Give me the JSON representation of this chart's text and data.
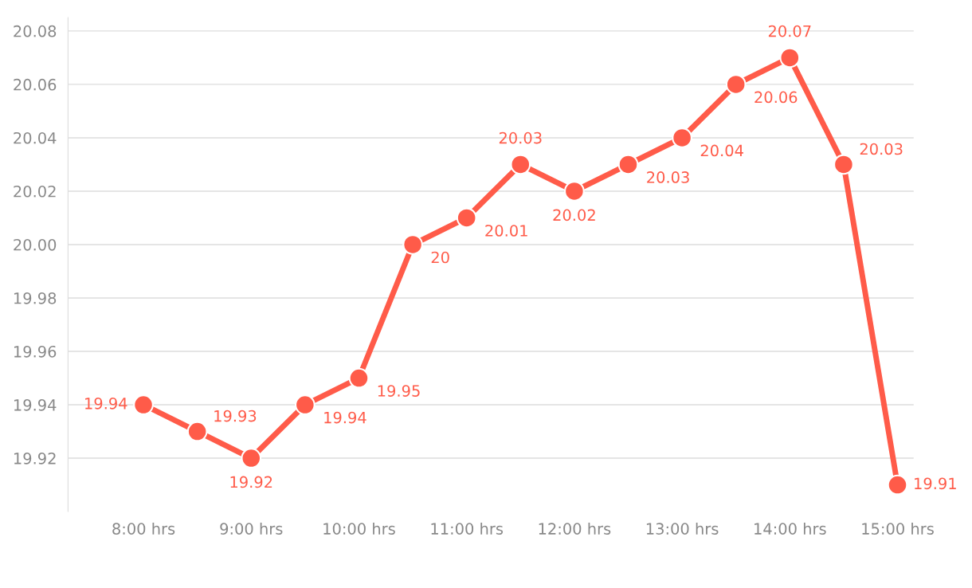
{
  "chart_data": {
    "type": "line",
    "categories": [
      "8:00 hrs",
      null,
      "9:00 hrs",
      null,
      "10:00 hrs",
      null,
      "11:00 hrs",
      null,
      "12:00 hrs",
      null,
      "13:00 hrs",
      null,
      "14:00 hrs",
      null,
      "15:00 hrs"
    ],
    "series": [
      {
        "color": "#ff5b49",
        "values": [
          19.94,
          19.93,
          19.92,
          19.94,
          19.95,
          20,
          20.01,
          20.03,
          20.02,
          20.03,
          20.04,
          20.06,
          20.07,
          20.03,
          19.91
        ]
      }
    ],
    "ylim": [
      19.9,
      20.085
    ],
    "yticks": [
      19.92,
      19.94,
      19.96,
      19.98,
      {
        "value": 20,
        "label": "20.00"
      },
      20.02,
      20.04,
      20.06,
      20.08
    ],
    "grid": "y",
    "marker": "circle",
    "line_style": "solid",
    "data_labels": true
  }
}
